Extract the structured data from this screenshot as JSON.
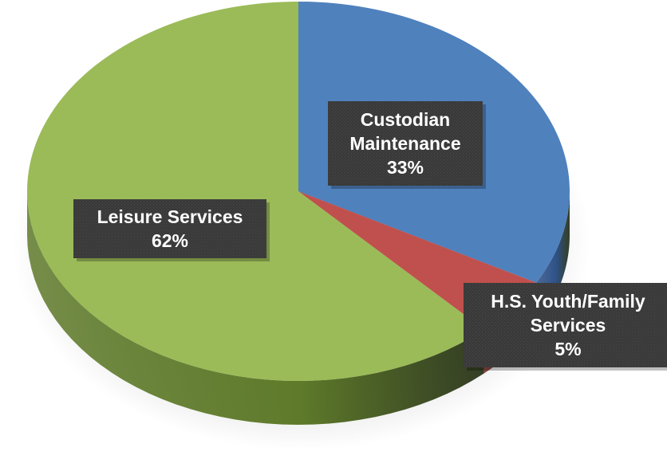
{
  "chart_data": {
    "type": "pie",
    "title": "",
    "style": "3d-tilted",
    "slices": [
      {
        "label": "Custodian Maintenance",
        "label_lines": [
          "Custodian",
          "Maintenance"
        ],
        "percent_label": "33%",
        "value": 33,
        "color": "#4F81BD",
        "side_color": "#2E5288"
      },
      {
        "label": "H.S. Youth/Family Services",
        "label_lines": [
          "H.S. Youth/Family",
          "Services"
        ],
        "percent_label": "5%",
        "value": 5,
        "color": "#C0504D",
        "side_color": "#7F2A28"
      },
      {
        "label": "Leisure Services",
        "label_lines": [
          "Leisure Services"
        ],
        "percent_label": "62%",
        "value": 62,
        "color": "#9BBB59",
        "side_color": "#5E7A2A"
      }
    ],
    "data_label_box_color": "#3A3A3A",
    "legend": "none"
  }
}
